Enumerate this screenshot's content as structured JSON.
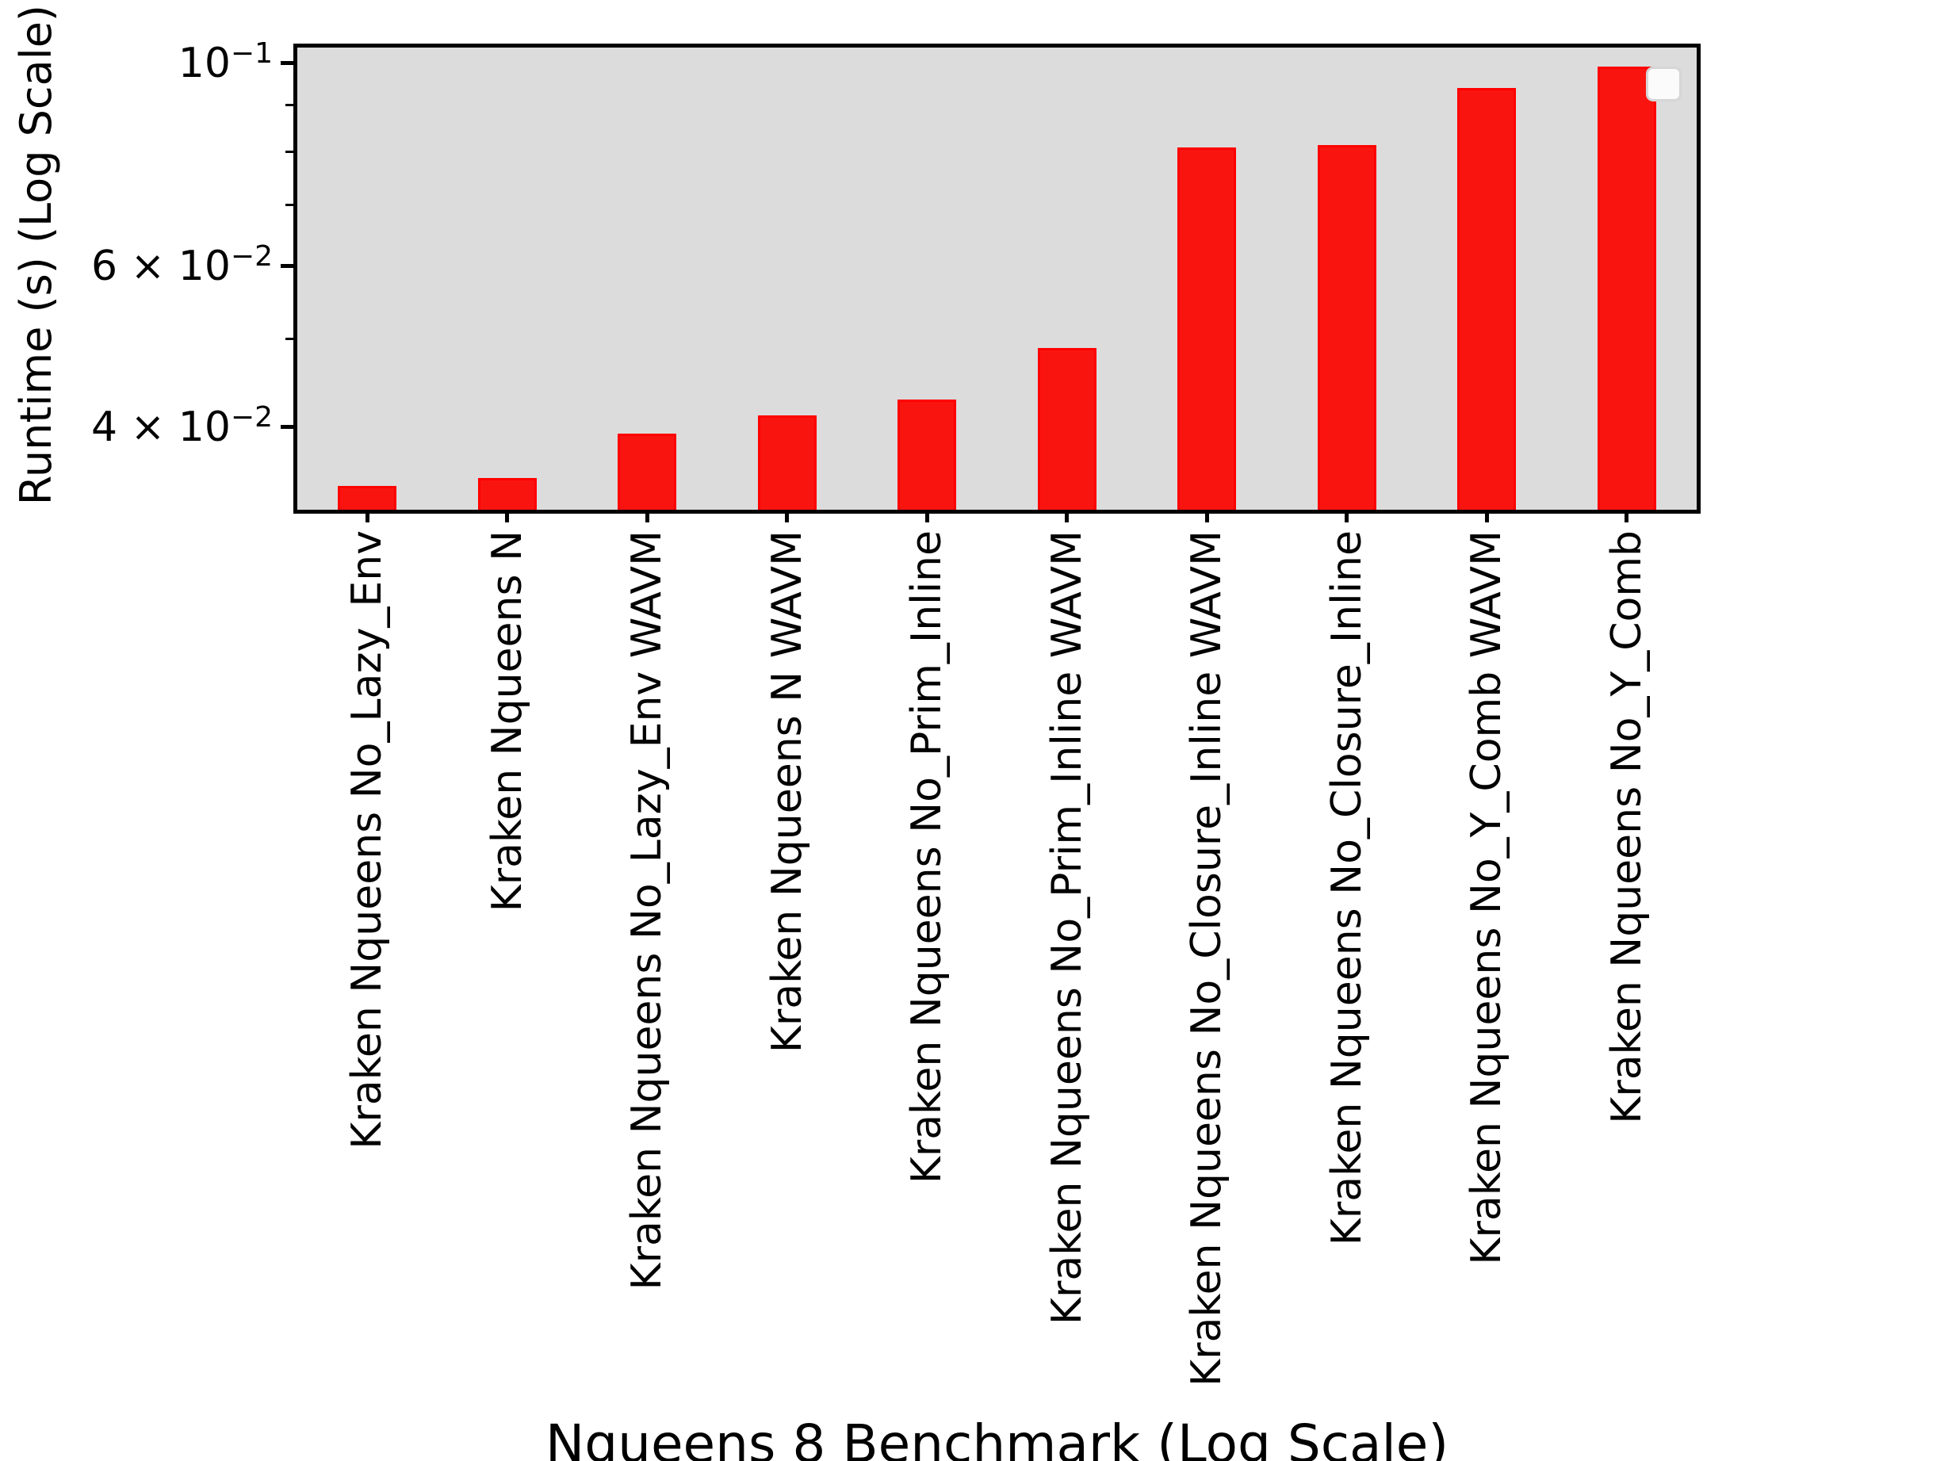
{
  "chart_data": {
    "type": "bar",
    "title": "",
    "xlabel": "Nqueens 8 Benchmark (Log Scale)",
    "ylabel": "Runtime (s) (Log Scale)",
    "categories": [
      "Kraken Nqueens No_Lazy_Env",
      "Kraken Nqueens N",
      "Kraken Nqueens No_Lazy_Env WAVM",
      "Kraken Nqueens N WAVM",
      "Kraken Nqueens No_Prim_Inline",
      "Kraken Nqueens No_Prim_Inline WAVM",
      "Kraken Nqueens No_Closure_Inline WAVM",
      "Kraken Nqueens No_Closure_Inline",
      "Kraken Nqueens No_Y_Comb WAVM",
      "Kraken Nqueens No_Y_Comb"
    ],
    "values": [
      0.0345,
      0.0352,
      0.0394,
      0.0412,
      0.0429,
      0.0488,
      0.0809,
      0.0813,
      0.094,
      0.0991
    ],
    "unit": "s",
    "yscale": "log",
    "ylim": [
      0.0325,
      0.104
    ],
    "yticks_major": [
      {
        "value": 0.1,
        "base": "10",
        "exp": "−1"
      },
      {
        "value": 0.06,
        "base": "6 × 10",
        "exp": "−2"
      },
      {
        "value": 0.04,
        "base": "4 × 10",
        "exp": "−2"
      }
    ],
    "yticks_minor": [
      0.09,
      0.08,
      0.07,
      0.05
    ],
    "grid": false,
    "legend": {
      "present": true,
      "entries": [],
      "position": "upper-right"
    },
    "colors": {
      "bar_fill": "#fa1410",
      "bar_edge": "#ff0000",
      "plot_bg": "#dcdcdc",
      "frame": "#000000",
      "legend_fill": "#fbfbfb",
      "legend_border": "#d6d6d6",
      "text": "#000000"
    }
  }
}
